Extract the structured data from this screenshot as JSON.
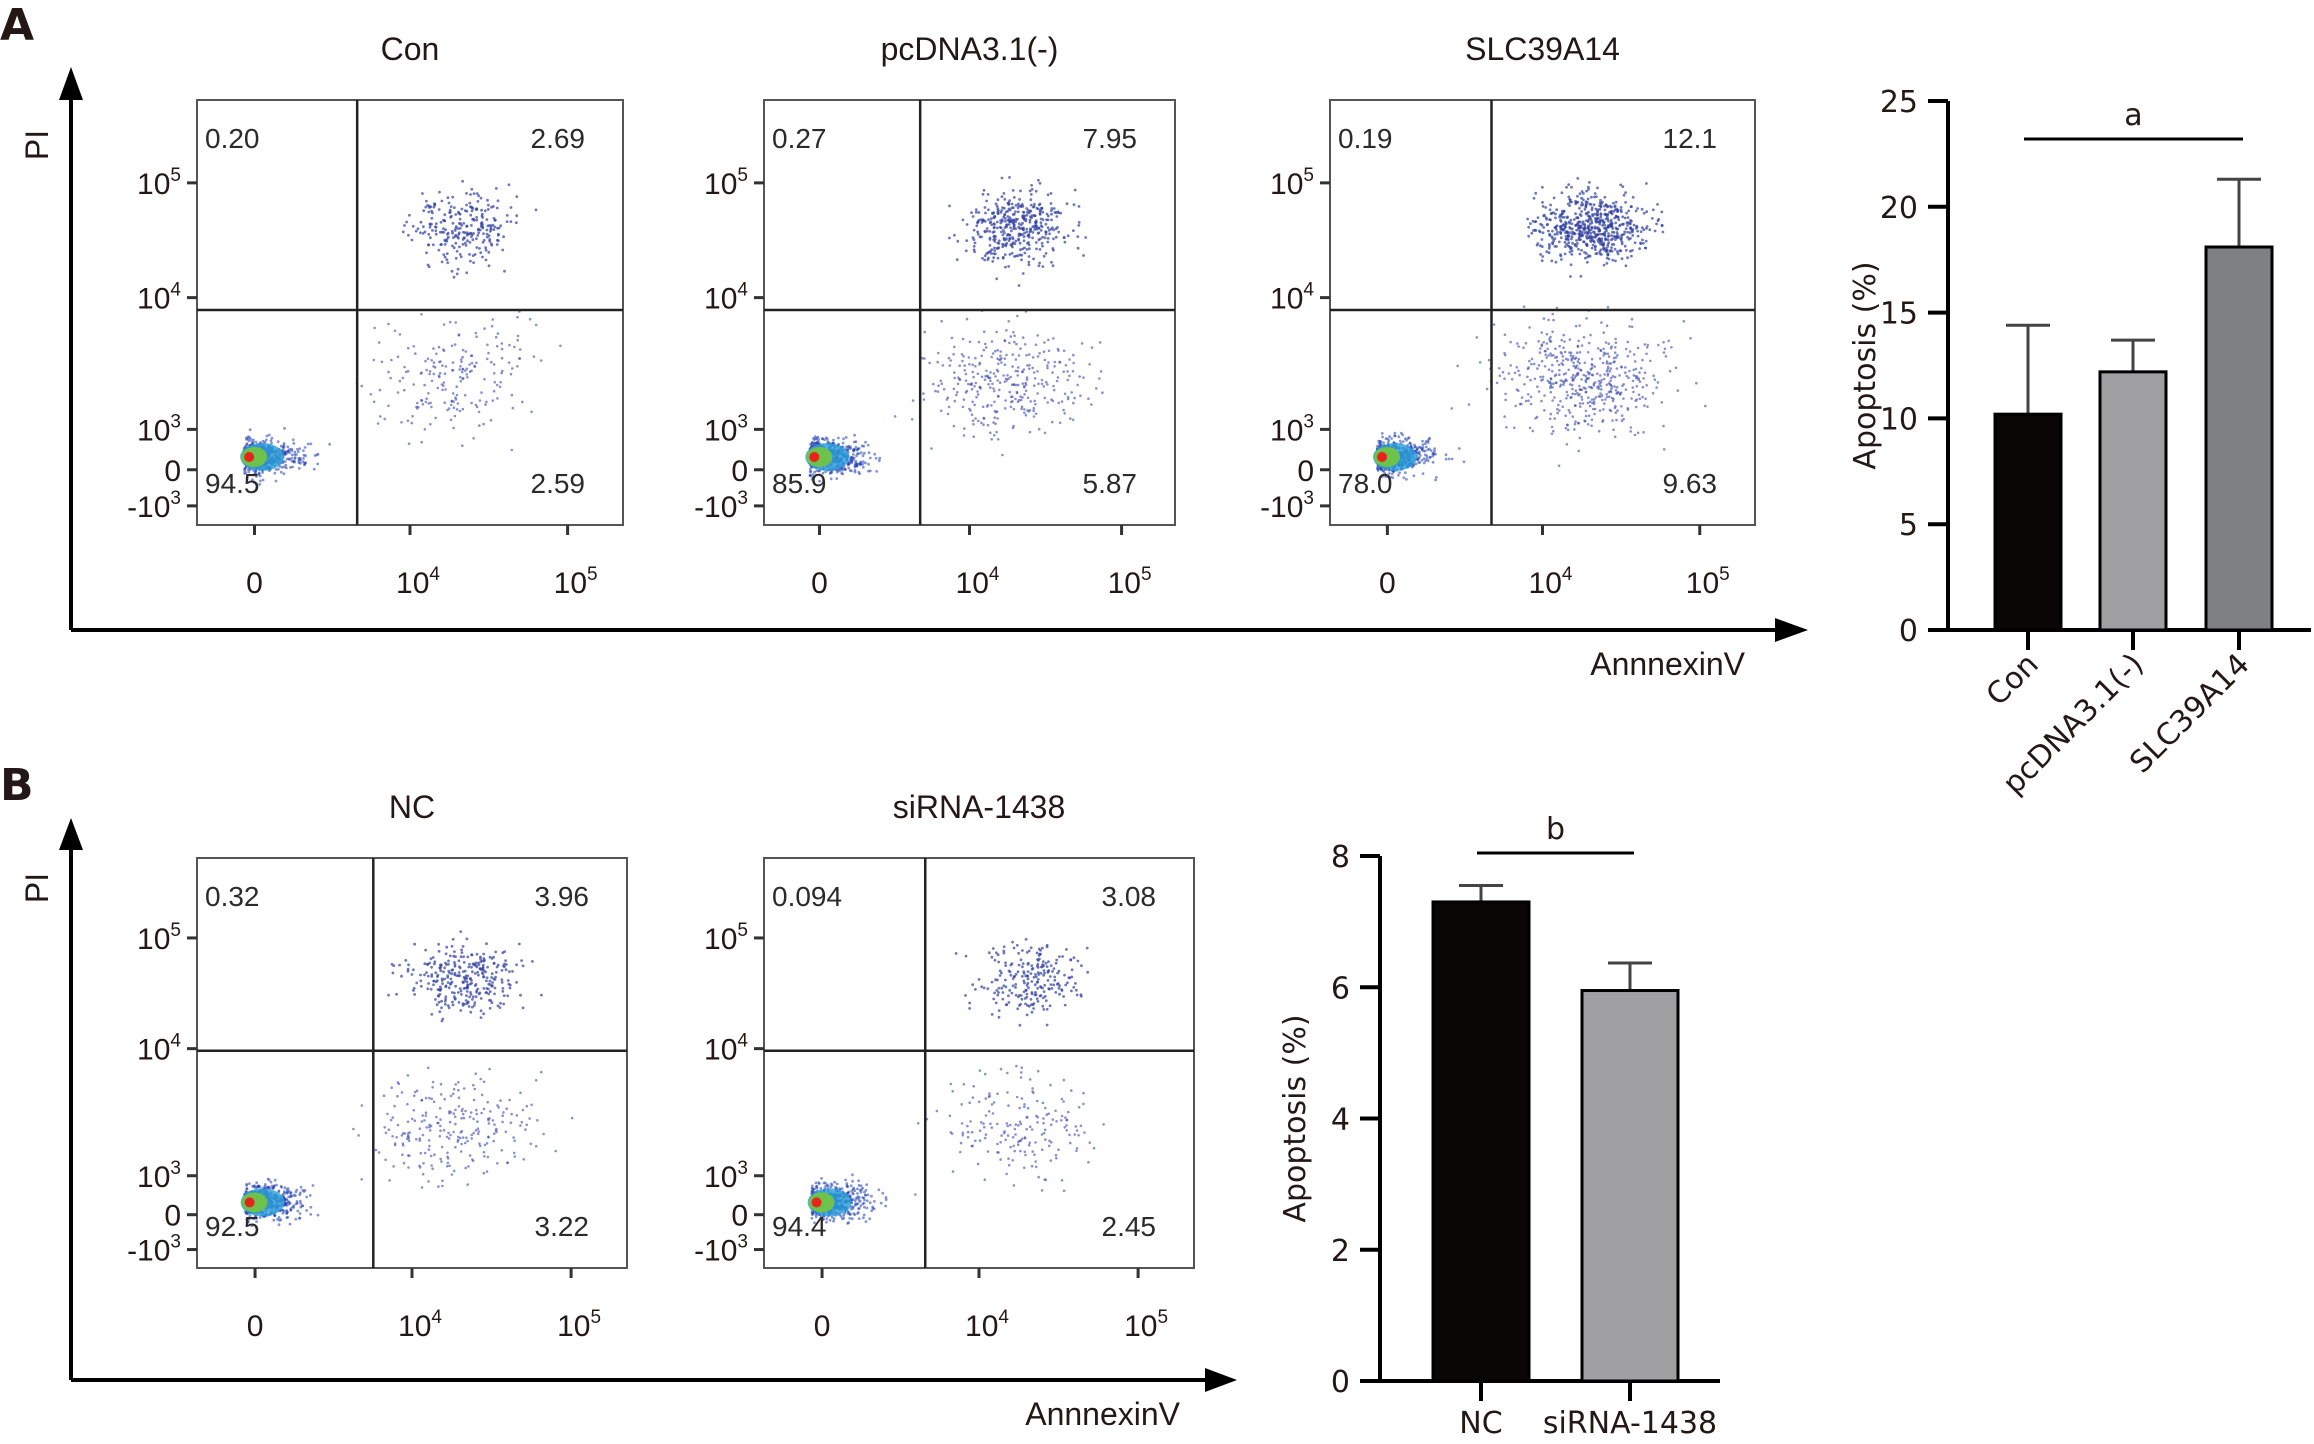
{
  "figure": {
    "panels": [
      {
        "letter": "A",
        "flow_axis_labels": {
          "y": "PI",
          "x": "AnnnexinV"
        },
        "flow_plots": [
          {
            "title": "Con",
            "quadrants": {
              "upper_left": "0.20",
              "upper_right": "2.69",
              "lower_left": "94.5",
              "lower_right": "2.59"
            },
            "density": 1.0
          },
          {
            "title": "pcDNA3.1(-)",
            "quadrants": {
              "upper_left": "0.27",
              "upper_right": "7.95",
              "lower_left": "85.9",
              "lower_right": "5.87"
            },
            "density": 1.6
          },
          {
            "title": "SLC39A14",
            "quadrants": {
              "upper_left": "0.19",
              "upper_right": "12.1",
              "lower_left": "78.0",
              "lower_right": "9.63"
            },
            "density": 2.4
          }
        ]
      },
      {
        "letter": "B",
        "flow_axis_labels": {
          "y": "PI",
          "x": "AnnnexinV"
        },
        "flow_plots": [
          {
            "title": "NC",
            "quadrants": {
              "upper_left": "0.32",
              "upper_right": "3.96",
              "lower_left": "92.5",
              "lower_right": "3.22"
            },
            "density": 1.2
          },
          {
            "title": "siRNA-1438",
            "quadrants": {
              "upper_left": "0.094",
              "upper_right": "3.08",
              "lower_left": "94.4",
              "lower_right": "2.45"
            },
            "density": 0.9
          }
        ]
      }
    ],
    "flow_ticks": {
      "y": [
        {
          "base": "10",
          "exp": "5"
        },
        {
          "base": "10",
          "exp": "4"
        },
        {
          "base": "10",
          "exp": "3"
        },
        {
          "base": "0",
          "exp": ""
        },
        {
          "base": "-10",
          "exp": "3"
        }
      ],
      "x": [
        {
          "base": "0",
          "exp": ""
        },
        {
          "base": "10",
          "exp": "4"
        },
        {
          "base": "10",
          "exp": "5"
        }
      ]
    }
  },
  "chart_data": [
    {
      "type": "bar",
      "panel": "A",
      "title": "",
      "xlabel": "",
      "ylabel": "Apoptosis (%)",
      "categories": [
        "Con",
        "pcDNA3.1(-)",
        "SLC39A14"
      ],
      "values": [
        10.2,
        12.2,
        18.1
      ],
      "error_upper": [
        14.4,
        13.7,
        21.3
      ],
      "colors": [
        "#0a0605",
        "#a0a0a2",
        "#7f8082"
      ],
      "ylim": [
        0,
        25
      ],
      "yticks": [
        0,
        5,
        10,
        15,
        20,
        25
      ],
      "xtick_rotation": "45deg",
      "significance": {
        "label": "a",
        "from": "Con",
        "to": "SLC39A14"
      },
      "grid": false,
      "legend": "none"
    },
    {
      "type": "bar",
      "panel": "B",
      "title": "",
      "xlabel": "",
      "ylabel": "Apoptosis (%)",
      "categories": [
        "NC",
        "siRNA-1438"
      ],
      "values": [
        7.3,
        5.95
      ],
      "error_upper": [
        7.55,
        6.37
      ],
      "colors": [
        "#0a0605",
        "#a0a0a2"
      ],
      "ylim": [
        0,
        8
      ],
      "yticks": [
        0,
        2,
        4,
        6,
        8
      ],
      "xtick_rotation": "0deg",
      "significance": {
        "label": "b",
        "from": "NC",
        "to": "siRNA-1438"
      },
      "grid": false,
      "legend": "none"
    }
  ]
}
